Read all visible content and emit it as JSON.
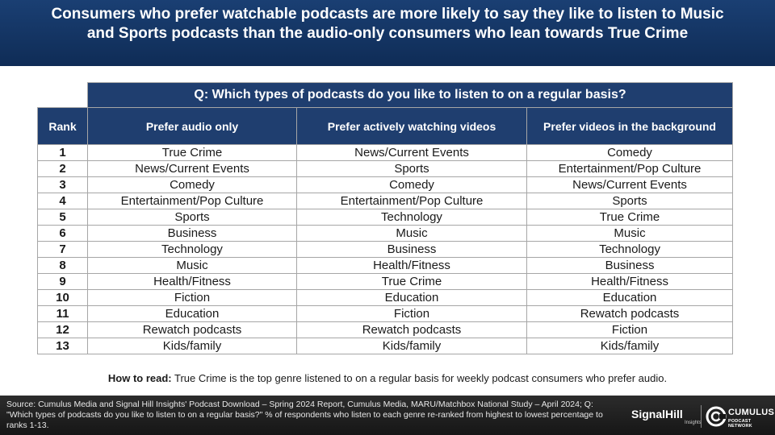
{
  "header": {
    "title": "Consumers who prefer watchable podcasts are more likely to say they like to listen to Music and Sports podcasts than the audio-only consumers who lean towards True Crime"
  },
  "table": {
    "question": "Q: Which types of podcasts do you like to listen to on a regular basis?",
    "columns": [
      "Rank",
      "Prefer audio only",
      "Prefer actively watching videos",
      "Prefer videos in the background"
    ],
    "rows": [
      [
        "1",
        "True Crime",
        "News/Current Events",
        "Comedy"
      ],
      [
        "2",
        "News/Current Events",
        "Sports",
        "Entertainment/Pop Culture"
      ],
      [
        "3",
        "Comedy",
        "Comedy",
        "News/Current Events"
      ],
      [
        "4",
        "Entertainment/Pop Culture",
        "Entertainment/Pop Culture",
        "Sports"
      ],
      [
        "5",
        "Sports",
        "Technology",
        "True Crime"
      ],
      [
        "6",
        "Business",
        "Music",
        "Music"
      ],
      [
        "7",
        "Technology",
        "Business",
        "Technology"
      ],
      [
        "8",
        "Music",
        "Health/Fitness",
        "Business"
      ],
      [
        "9",
        "Health/Fitness",
        "True Crime",
        "Health/Fitness"
      ],
      [
        "10",
        "Fiction",
        "Education",
        "Education"
      ],
      [
        "11",
        "Education",
        "Fiction",
        "Rewatch podcasts"
      ],
      [
        "12",
        "Rewatch podcasts",
        "Rewatch podcasts",
        "Fiction"
      ],
      [
        "13",
        "Kids/family",
        "Kids/family",
        "Kids/family"
      ]
    ]
  },
  "how_to_read": {
    "label": "How to read:",
    "text": " True Crime is the top genre listened to on a regular basis for weekly podcast consumers who prefer audio."
  },
  "footer": {
    "source": "Source: Cumulus Media and Signal Hill Insights' Podcast Download – Spring 2024 Report, Cumulus Media, MARU/Matchbox National Study – April 2024; Q: \"Which types of podcasts do you like to listen to on a regular basis?\" % of respondents who listen to each genre re-ranked from highest to lowest percentage to ranks 1-13.",
    "logo_signal": "SignalHill",
    "logo_signal_sub": "Insights",
    "logo_cumulus": "CUMULUS",
    "logo_cumulus_sub": "PODCAST NETWORK"
  }
}
